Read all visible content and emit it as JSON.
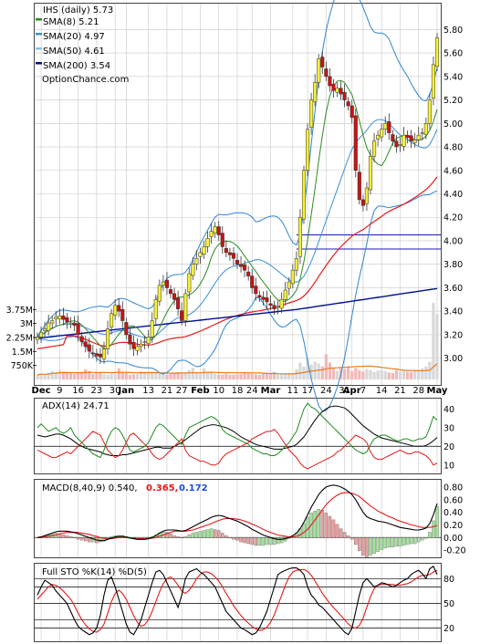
{
  "chart_data": [
    {
      "type": "candlestick",
      "panel": "price",
      "title": "IHS (daily) 5.73",
      "watermark": "OptionChance.com",
      "ylim": [
        2.78,
        6.02
      ],
      "yticks": [
        "5.80",
        "5.60",
        "5.40",
        "5.20",
        "5.00",
        "4.80",
        "4.60",
        "4.40",
        "4.20",
        "4.00",
        "3.80",
        "3.60",
        "3.40",
        "3.20",
        "3.00"
      ],
      "grid": true,
      "legend_position": "top-left",
      "legend": [
        {
          "label": "SMA(8) 5.21",
          "color": "#2e8b22"
        },
        {
          "label": "SMA(20) 4.97",
          "color": "#3a8fd6"
        },
        {
          "label": "SMA(50) 4.61",
          "color": "#86c3ee"
        },
        {
          "label": "SMA(200) 3.54",
          "color": "#00108a"
        }
      ],
      "horizontal_lines": [
        4.05,
        3.93
      ],
      "x_ticks": [
        {
          "label": "Dec",
          "i": 1
        },
        {
          "label": "9",
          "i": 6
        },
        {
          "label": "16",
          "i": 11
        },
        {
          "label": "23",
          "i": 16
        },
        {
          "label": "30",
          "i": 21
        },
        {
          "label": "Jan",
          "i": 24
        },
        {
          "label": "13",
          "i": 30
        },
        {
          "label": "21",
          "i": 35
        },
        {
          "label": "27",
          "i": 39
        },
        {
          "label": "Feb",
          "i": 44
        },
        {
          "label": "10",
          "i": 49
        },
        {
          "label": "18",
          "i": 54
        },
        {
          "label": "24",
          "i": 58
        },
        {
          "label": "Mar",
          "i": 63
        },
        {
          "label": "11",
          "i": 69
        },
        {
          "label": "17",
          "i": 73
        },
        {
          "label": "24",
          "i": 78
        },
        {
          "label": "31",
          "i": 83
        },
        {
          "label": "Apr",
          "i": 85
        },
        {
          "label": "7",
          "i": 88
        },
        {
          "label": "14",
          "i": 93
        },
        {
          "label": "21",
          "i": 98
        },
        {
          "label": "28",
          "i": 103
        },
        {
          "label": "May",
          "i": 108
        }
      ],
      "close": [
        3.18,
        3.22,
        3.25,
        3.3,
        3.32,
        3.35,
        3.36,
        3.33,
        3.31,
        3.3,
        3.28,
        3.2,
        3.14,
        3.1,
        3.06,
        3.04,
        3.02,
        3.01,
        3.08,
        3.25,
        3.38,
        3.45,
        3.4,
        3.32,
        3.2,
        3.12,
        3.08,
        3.1,
        3.12,
        3.14,
        3.18,
        3.32,
        3.5,
        3.62,
        3.65,
        3.6,
        3.55,
        3.5,
        3.42,
        3.32,
        3.55,
        3.72,
        3.8,
        3.85,
        3.9,
        3.95,
        4.02,
        4.08,
        4.12,
        4.05,
        3.95,
        3.9,
        3.88,
        3.85,
        3.8,
        3.78,
        3.75,
        3.7,
        3.6,
        3.55,
        3.52,
        3.5,
        3.48,
        3.45,
        3.42,
        3.44,
        3.5,
        3.58,
        3.65,
        3.75,
        3.85,
        4.2,
        4.6,
        4.95,
        5.2,
        5.35,
        5.55,
        5.48,
        5.4,
        5.32,
        5.28,
        5.3,
        5.25,
        5.2,
        5.15,
        5.05,
        4.6,
        4.35,
        4.3,
        4.45,
        4.72,
        4.85,
        4.9,
        4.95,
        5.0,
        4.92,
        4.85,
        4.8,
        4.82,
        4.9,
        4.88,
        4.85,
        4.86,
        4.9,
        4.92,
        5.0,
        5.2,
        5.5,
        5.73
      ],
      "volume": [
        0.25,
        0.3,
        0.28,
        0.35,
        0.45,
        0.4,
        0.5,
        0.42,
        0.38,
        0.36,
        0.3,
        0.33,
        0.4,
        0.55,
        0.45,
        0.3,
        0.35,
        0.4,
        0.3,
        0.25,
        0.3,
        0.28,
        0.6,
        0.4,
        0.35,
        0.25,
        0.28,
        0.3,
        0.45,
        0.42,
        0.36,
        0.4,
        0.33,
        0.3,
        0.28,
        0.26,
        0.3,
        0.35,
        0.4,
        0.3,
        0.32,
        0.5,
        0.62,
        0.4,
        0.35,
        0.6,
        0.4,
        0.36,
        0.3,
        0.28,
        0.26,
        0.3,
        0.25,
        0.26,
        0.28,
        0.3,
        0.35,
        0.33,
        0.3,
        0.28,
        0.25,
        0.3,
        0.3,
        0.35,
        0.4,
        0.28,
        0.3,
        0.32,
        0.35,
        0.3,
        0.55,
        0.9,
        0.7,
        1.2,
        0.8,
        0.95,
        0.85,
        0.7,
        1.35,
        0.9,
        0.6,
        0.45,
        0.6,
        0.55,
        0.7,
        0.45,
        0.62,
        0.5,
        0.42,
        0.55,
        0.5,
        0.4,
        0.48,
        0.5,
        0.45,
        0.38,
        0.35,
        0.5,
        0.4,
        0.45,
        0.42,
        0.4,
        0.5,
        0.45,
        0.6,
        0.7,
        0.95,
        4.1,
        3.5
      ],
      "volume_axis": {
        "max": 4.4,
        "ticks": [
          "3.75M",
          "3M",
          "2.25M",
          "1.5M",
          "750K"
        ],
        "tick_values": [
          3.75,
          3.0,
          2.25,
          1.5,
          0.75
        ]
      }
    },
    {
      "type": "line",
      "panel": "adx",
      "title": "ADX(14) 24.71",
      "ylim": [
        6,
        45
      ],
      "yticks": [
        40,
        30,
        20,
        10
      ],
      "series": [
        {
          "color": "#000000",
          "values": [
            26,
            25.5,
            25,
            25.5,
            26,
            26.5,
            26.5,
            26,
            25,
            24,
            22.5,
            21,
            20,
            19,
            18.5,
            18,
            17.5,
            17,
            16,
            15.5,
            15,
            15,
            15,
            15.5,
            15.5,
            16,
            16.5,
            17,
            17.5,
            18,
            18.5,
            19,
            19.5,
            19.5,
            19,
            19,
            19,
            20,
            21,
            22,
            23.5,
            25,
            26.5,
            28,
            29.5,
            30.5,
            31,
            31.5,
            31.5,
            31,
            30.5,
            30,
            29,
            28,
            26.5,
            25,
            24,
            23,
            22,
            21,
            20.5,
            20,
            19.5,
            19,
            18.5,
            18.5,
            18.5,
            19,
            19.5,
            20,
            21,
            23,
            25,
            28,
            31,
            34,
            36.5,
            38.5,
            40,
            41,
            41.5,
            41.5,
            41,
            40.5,
            39,
            37,
            35,
            33,
            31,
            29.5,
            28,
            26.5,
            25.5,
            24.5,
            24,
            23.5,
            23,
            22.5,
            22,
            21.5,
            21,
            20.5,
            20,
            20,
            20,
            20.5,
            21.5,
            23,
            24.7
          ]
        },
        {
          "color": "#1f8a1f",
          "values": [
            30,
            32,
            30,
            28,
            29,
            30,
            28,
            27,
            28,
            30,
            26,
            24,
            22,
            20,
            18,
            16,
            15,
            14,
            18,
            24,
            28,
            30,
            29,
            26,
            22,
            18,
            17,
            18,
            19,
            20,
            22,
            26,
            30,
            32,
            31,
            29,
            27,
            25,
            23,
            21,
            26,
            30,
            31,
            32,
            33,
            34,
            35,
            36,
            35,
            33,
            29,
            27,
            26,
            25,
            24,
            23,
            22,
            21,
            19,
            18,
            17,
            16,
            16,
            15,
            15,
            16,
            18,
            20,
            22,
            25,
            28,
            34,
            40,
            43,
            41,
            40,
            38,
            36,
            34,
            32,
            30,
            28,
            26,
            24,
            22,
            20,
            18,
            17,
            16,
            17,
            21,
            24,
            25,
            26,
            26,
            25,
            24,
            23,
            23,
            24,
            24,
            23,
            23,
            24,
            24,
            25,
            30,
            36,
            34
          ]
        },
        {
          "color": "#e21b1b",
          "values": [
            18,
            17,
            16,
            15,
            14,
            14,
            15,
            16,
            17,
            16,
            18,
            20,
            22,
            24,
            26,
            28,
            27,
            26,
            22,
            18,
            16,
            14,
            15,
            18,
            22,
            26,
            27,
            25,
            23,
            21,
            19,
            16,
            14,
            13,
            14,
            16,
            18,
            20,
            22,
            24,
            18,
            15,
            14,
            13,
            12,
            12,
            11,
            10,
            10,
            11,
            14,
            16,
            17,
            18,
            19,
            20,
            21,
            22,
            24,
            25,
            26,
            27,
            28,
            28,
            29,
            27,
            24,
            21,
            18,
            16,
            14,
            11,
            9,
            8,
            9,
            10,
            11,
            12,
            13,
            14,
            15,
            17,
            18,
            20,
            22,
            24,
            26,
            25,
            24,
            22,
            17,
            14,
            13,
            13,
            14,
            15,
            16,
            17,
            18,
            17,
            16,
            16,
            17,
            17,
            16,
            15,
            13,
            10,
            11
          ]
        }
      ],
      "reference_line": 20
    },
    {
      "type": "macd",
      "panel": "macd",
      "title": "MACD(8,40,9) 0.540,",
      "macd_value": "0.365,",
      "signal_value": "0.172",
      "ylim": [
        -0.3,
        0.9
      ],
      "yticks": [
        "0.80",
        "0.60",
        "0.40",
        "0.20",
        "0.00",
        "-0.20"
      ],
      "tick_values": [
        0.8,
        0.6,
        0.4,
        0.2,
        0.0,
        -0.2
      ],
      "macd": [
        0.0,
        0.01,
        0.03,
        0.05,
        0.07,
        0.09,
        0.1,
        0.1,
        0.1,
        0.09,
        0.08,
        0.06,
        0.04,
        0.02,
        0.0,
        -0.02,
        -0.04,
        -0.05,
        -0.05,
        -0.03,
        -0.01,
        0.01,
        0.02,
        0.02,
        0.01,
        -0.01,
        -0.02,
        -0.03,
        -0.03,
        -0.03,
        -0.02,
        0.0,
        0.03,
        0.07,
        0.1,
        0.12,
        0.12,
        0.12,
        0.11,
        0.1,
        0.11,
        0.14,
        0.17,
        0.2,
        0.23,
        0.26,
        0.29,
        0.32,
        0.34,
        0.35,
        0.34,
        0.32,
        0.3,
        0.28,
        0.26,
        0.23,
        0.2,
        0.17,
        0.13,
        0.1,
        0.07,
        0.04,
        0.02,
        0.0,
        -0.02,
        -0.03,
        -0.03,
        -0.02,
        0.0,
        0.03,
        0.07,
        0.14,
        0.24,
        0.36,
        0.48,
        0.58,
        0.68,
        0.75,
        0.8,
        0.82,
        0.83,
        0.82,
        0.8,
        0.77,
        0.73,
        0.68,
        0.6,
        0.5,
        0.4,
        0.33,
        0.3,
        0.28,
        0.26,
        0.25,
        0.24,
        0.22,
        0.2,
        0.18,
        0.16,
        0.15,
        0.14,
        0.13,
        0.12,
        0.12,
        0.13,
        0.15,
        0.22,
        0.36,
        0.54
      ],
      "signal": [
        0.0,
        0.0,
        0.01,
        0.02,
        0.03,
        0.04,
        0.06,
        0.07,
        0.08,
        0.08,
        0.08,
        0.08,
        0.07,
        0.06,
        0.05,
        0.03,
        0.02,
        0.0,
        -0.01,
        -0.02,
        -0.02,
        -0.01,
        0.0,
        0.0,
        0.0,
        0.0,
        -0.01,
        -0.02,
        -0.02,
        -0.02,
        -0.02,
        -0.01,
        0.0,
        0.02,
        0.04,
        0.06,
        0.08,
        0.1,
        0.1,
        0.1,
        0.1,
        0.11,
        0.12,
        0.14,
        0.16,
        0.18,
        0.2,
        0.22,
        0.25,
        0.27,
        0.29,
        0.3,
        0.3,
        0.3,
        0.29,
        0.28,
        0.26,
        0.24,
        0.21,
        0.19,
        0.16,
        0.13,
        0.1,
        0.08,
        0.06,
        0.04,
        0.03,
        0.02,
        0.01,
        0.01,
        0.02,
        0.04,
        0.08,
        0.13,
        0.2,
        0.28,
        0.36,
        0.44,
        0.52,
        0.58,
        0.63,
        0.67,
        0.7,
        0.71,
        0.71,
        0.7,
        0.68,
        0.65,
        0.6,
        0.55,
        0.5,
        0.46,
        0.42,
        0.39,
        0.36,
        0.33,
        0.31,
        0.28,
        0.26,
        0.24,
        0.22,
        0.2,
        0.19,
        0.17,
        0.16,
        0.16,
        0.16,
        0.17,
        0.19
      ]
    },
    {
      "type": "line",
      "panel": "stochastic",
      "title": "Full STO %K(14) %D(5)",
      "ylim": [
        5,
        97
      ],
      "yticks": [
        80,
        50,
        20
      ],
      "reference_lines": [
        80,
        70,
        50,
        30,
        20
      ],
      "series": [
        {
          "color": "#000000",
          "values": [
            60,
            70,
            78,
            75,
            72,
            65,
            60,
            55,
            50,
            40,
            30,
            22,
            18,
            15,
            12,
            14,
            20,
            35,
            60,
            78,
            82,
            70,
            55,
            40,
            25,
            15,
            12,
            20,
            30,
            45,
            60,
            75,
            88,
            90,
            85,
            75,
            65,
            55,
            45,
            60,
            80,
            88,
            90,
            92,
            88,
            85,
            80,
            75,
            70,
            60,
            50,
            40,
            35,
            30,
            25,
            20,
            18,
            15,
            12,
            14,
            20,
            30,
            40,
            55,
            70,
            85,
            88,
            90,
            92,
            93,
            93,
            90,
            85,
            70,
            60,
            55,
            48,
            45,
            40,
            35,
            30,
            25,
            20,
            15,
            12,
            20,
            40,
            60,
            75,
            80,
            75,
            70,
            72,
            75,
            74,
            72,
            70,
            72,
            75,
            78,
            80,
            85,
            88,
            90,
            86,
            80,
            92,
            95,
            85
          ]
        },
        {
          "color": "#e21b1b",
          "values": [
            55,
            60,
            65,
            70,
            73,
            72,
            69,
            65,
            60,
            55,
            47,
            38,
            30,
            24,
            19,
            16,
            15,
            18,
            25,
            38,
            52,
            62,
            66,
            62,
            55,
            45,
            35,
            27,
            22,
            24,
            30,
            40,
            52,
            64,
            74,
            80,
            82,
            78,
            72,
            65,
            62,
            66,
            72,
            80,
            85,
            88,
            88,
            86,
            82,
            77,
            70,
            62,
            55,
            47,
            41,
            35,
            30,
            26,
            22,
            19,
            17,
            18,
            21,
            27,
            36,
            48,
            60,
            72,
            82,
            88,
            90,
            91,
            91,
            89,
            84,
            77,
            70,
            62,
            56,
            50,
            45,
            40,
            35,
            30,
            25,
            21,
            20,
            23,
            32,
            45,
            58,
            68,
            72,
            73,
            73,
            73,
            73,
            72,
            72,
            73,
            74,
            76,
            79,
            82,
            84,
            84,
            85,
            88,
            90
          ]
        }
      ]
    }
  ]
}
